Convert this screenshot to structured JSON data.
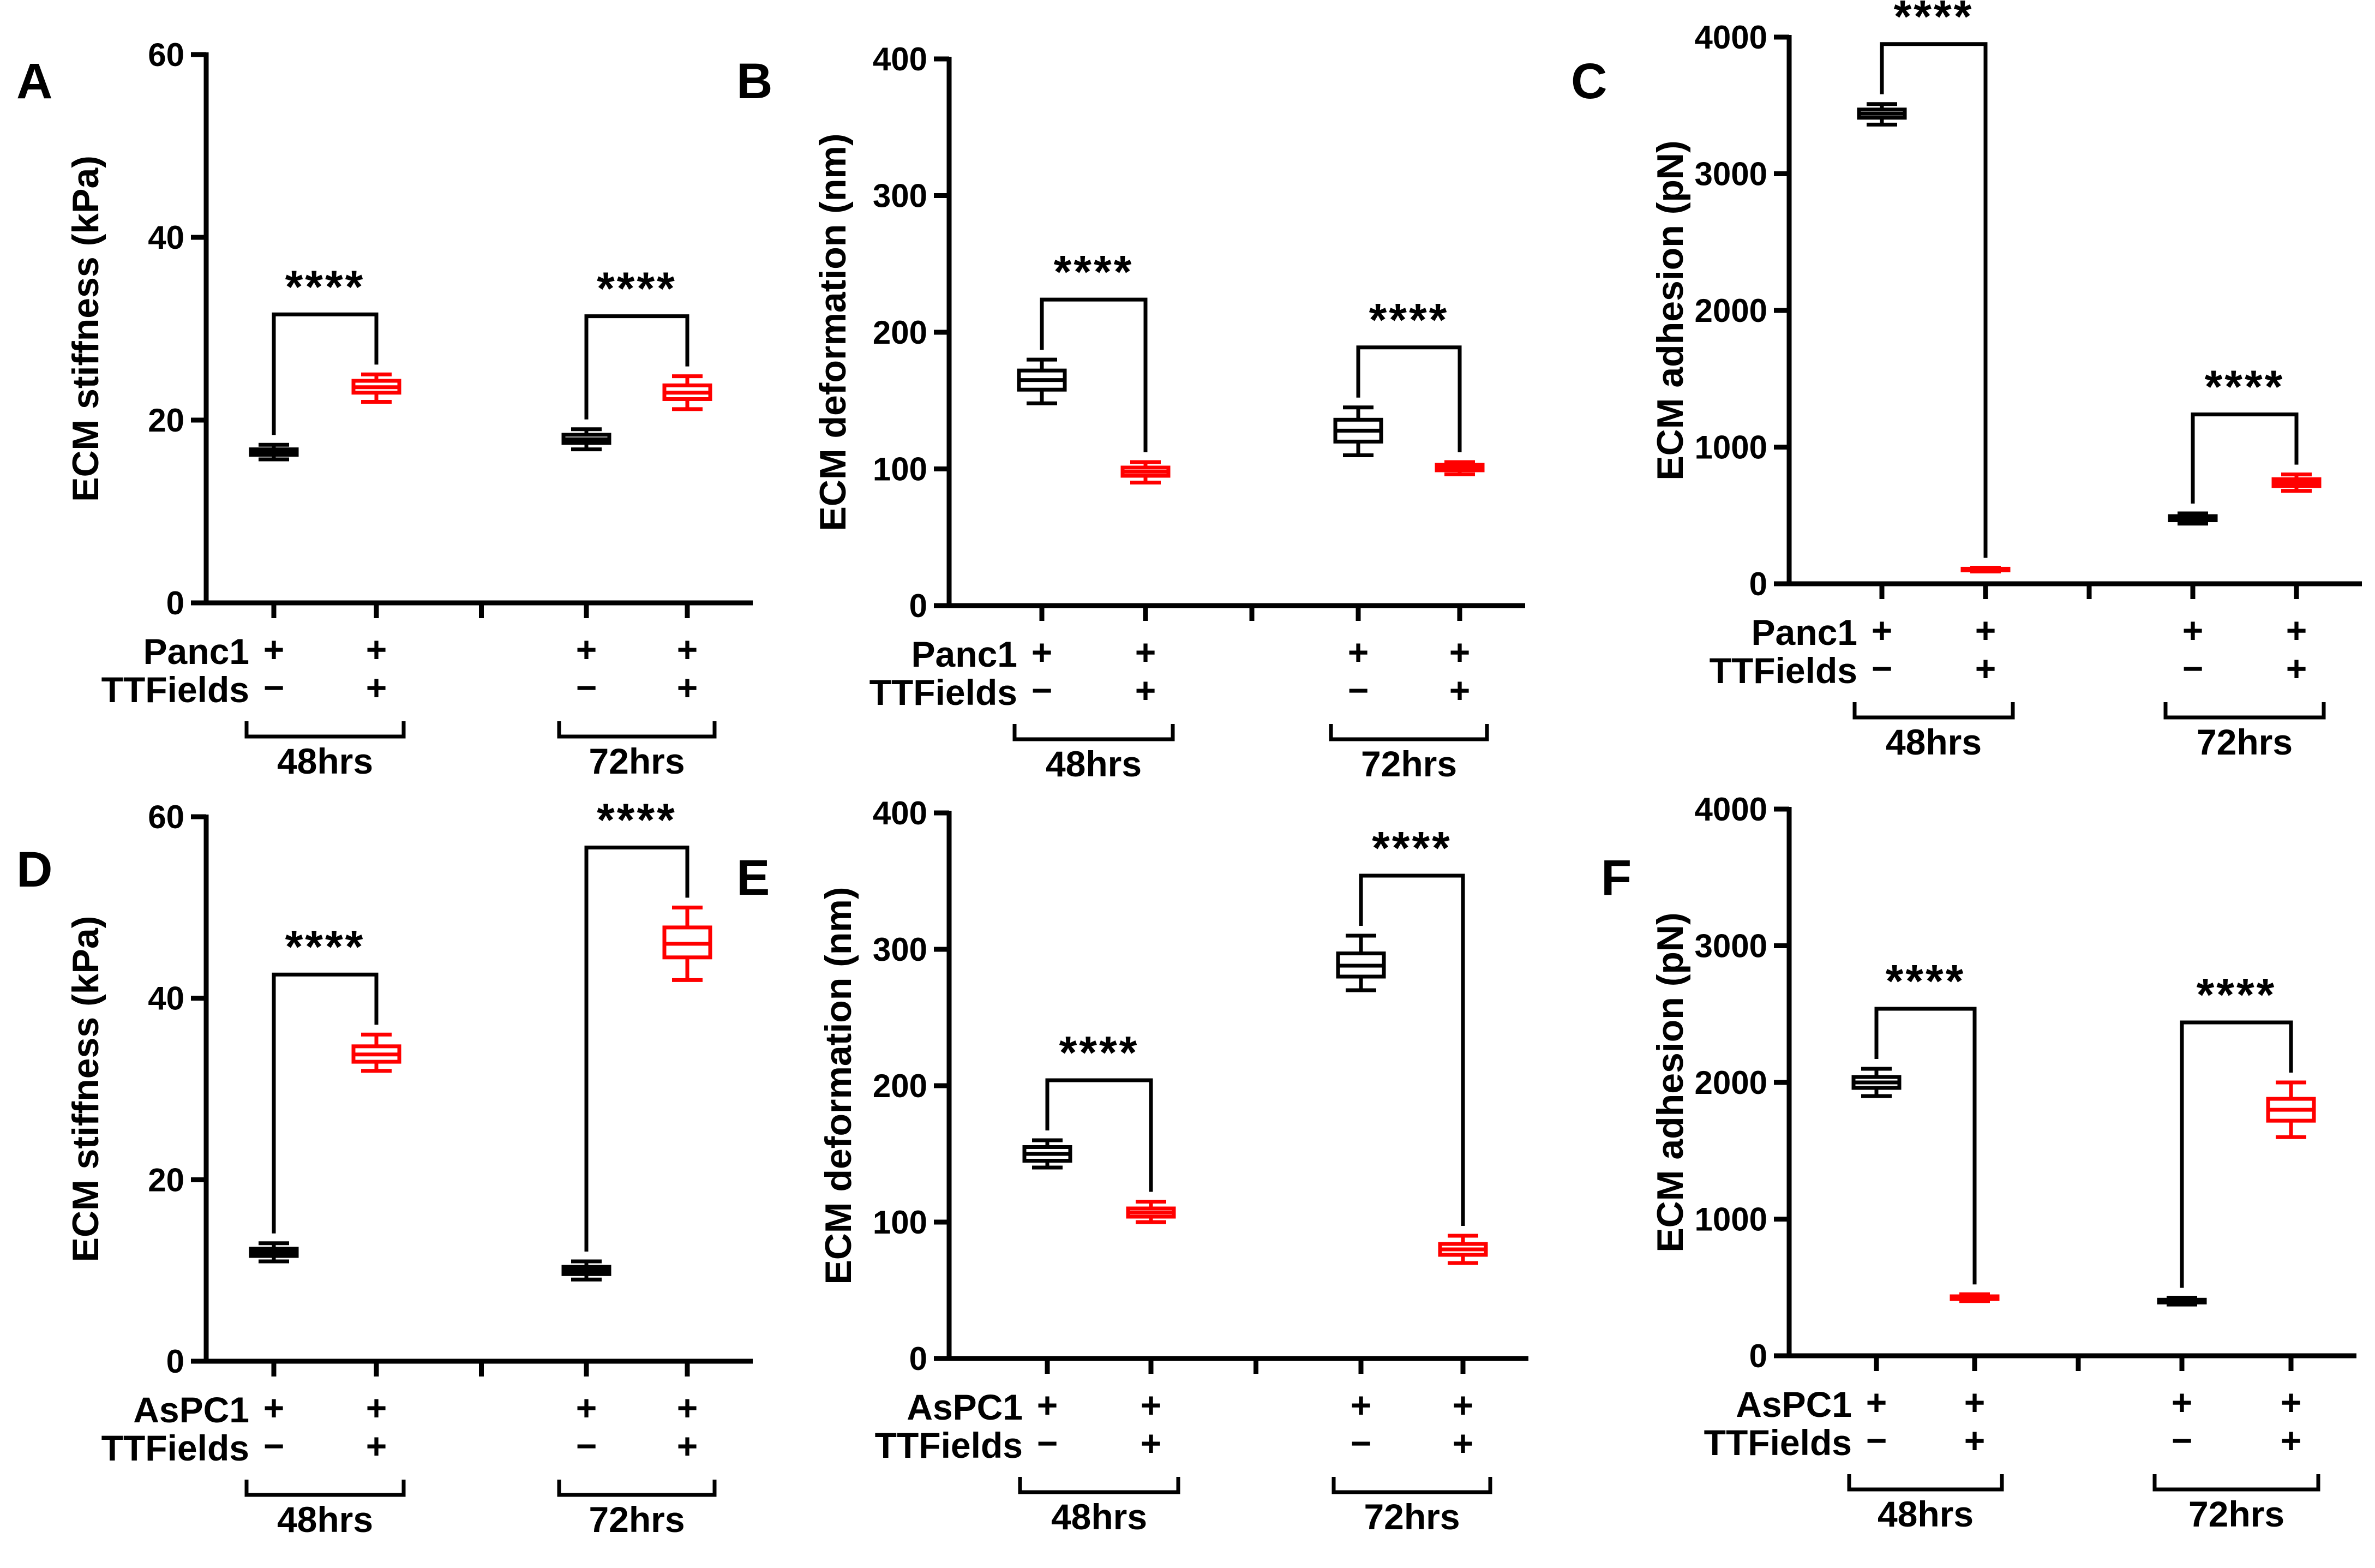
{
  "chart_data": [
    {
      "panel": "A",
      "type": "boxplot",
      "ylabel": "ECM stiffness (kPa)",
      "ylim": [
        0,
        60
      ],
      "yticks": [
        0,
        20,
        40,
        60
      ],
      "cell_line": "Panc1",
      "row_labels": [
        "Panc1",
        "TTFields"
      ],
      "groups": [
        "48hrs",
        "72hrs"
      ],
      "significance": [
        "****",
        "****"
      ],
      "boxes": [
        {
          "group": "48hrs",
          "cell": "+",
          "ttfields": "−",
          "color": "#000000",
          "min": 15.7,
          "q1": 16.2,
          "median": 16.5,
          "q3": 16.8,
          "max": 17.3
        },
        {
          "group": "48hrs",
          "cell": "+",
          "ttfields": "+",
          "color": "#ff0000",
          "min": 22.0,
          "q1": 23.0,
          "median": 23.6,
          "q3": 24.3,
          "max": 25.0
        },
        {
          "group": "72hrs",
          "cell": "+",
          "ttfields": "−",
          "color": "#000000",
          "min": 16.8,
          "q1": 17.5,
          "median": 17.9,
          "q3": 18.4,
          "max": 19.0
        },
        {
          "group": "72hrs",
          "cell": "+",
          "ttfields": "+",
          "color": "#ff0000",
          "min": 21.2,
          "q1": 22.3,
          "median": 23.0,
          "q3": 23.8,
          "max": 24.8
        }
      ]
    },
    {
      "panel": "B",
      "type": "boxplot",
      "ylabel": "ECM deformation (nm)",
      "ylim": [
        0,
        400
      ],
      "yticks": [
        0,
        100,
        200,
        300,
        400
      ],
      "cell_line": "Panc1",
      "row_labels": [
        "Panc1",
        "TTFields"
      ],
      "groups": [
        "48hrs",
        "72hrs"
      ],
      "significance": [
        "****",
        "****"
      ],
      "boxes": [
        {
          "group": "48hrs",
          "cell": "+",
          "ttfields": "−",
          "color": "#000000",
          "min": 148,
          "q1": 158,
          "median": 165,
          "q3": 172,
          "max": 180
        },
        {
          "group": "48hrs",
          "cell": "+",
          "ttfields": "+",
          "color": "#ff0000",
          "min": 90,
          "q1": 95,
          "median": 98,
          "q3": 101,
          "max": 105
        },
        {
          "group": "72hrs",
          "cell": "+",
          "ttfields": "−",
          "color": "#000000",
          "min": 110,
          "q1": 120,
          "median": 128,
          "q3": 136,
          "max": 145
        },
        {
          "group": "72hrs",
          "cell": "+",
          "ttfields": "+",
          "color": "#ff0000",
          "min": 96,
          "q1": 99,
          "median": 101,
          "q3": 103,
          "max": 105
        }
      ]
    },
    {
      "panel": "C",
      "type": "boxplot",
      "ylabel": "ECM adhesion (pN)",
      "ylim": [
        0,
        4000
      ],
      "yticks": [
        0,
        1000,
        2000,
        3000,
        4000
      ],
      "cell_line": "Panc1",
      "row_labels": [
        "Panc1",
        "TTFields"
      ],
      "groups": [
        "48hrs",
        "72hrs"
      ],
      "significance": [
        "****",
        "****"
      ],
      "boxes": [
        {
          "group": "48hrs",
          "cell": "+",
          "ttfields": "−",
          "color": "#000000",
          "min": 3360,
          "q1": 3410,
          "median": 3440,
          "q3": 3470,
          "max": 3510
        },
        {
          "group": "48hrs",
          "cell": "+",
          "ttfields": "+",
          "color": "#ff0000",
          "min": 90,
          "q1": 98,
          "median": 104,
          "q3": 110,
          "max": 118
        },
        {
          "group": "72hrs",
          "cell": "+",
          "ttfields": "−",
          "color": "#000000",
          "min": 440,
          "q1": 465,
          "median": 480,
          "q3": 495,
          "max": 515
        },
        {
          "group": "72hrs",
          "cell": "+",
          "ttfields": "+",
          "color": "#ff0000",
          "min": 680,
          "q1": 715,
          "median": 740,
          "q3": 765,
          "max": 800
        }
      ]
    },
    {
      "panel": "D",
      "type": "boxplot",
      "ylabel": "ECM stiffness (kPa)",
      "ylim": [
        0,
        60
      ],
      "yticks": [
        0,
        20,
        40,
        60
      ],
      "cell_line": "AsPC1",
      "row_labels": [
        "AsPC1",
        "TTFields"
      ],
      "groups": [
        "48hrs",
        "72hrs"
      ],
      "significance": [
        "****",
        "****"
      ],
      "boxes": [
        {
          "group": "48hrs",
          "cell": "+",
          "ttfields": "−",
          "color": "#000000",
          "min": 11.0,
          "q1": 11.6,
          "median": 12.0,
          "q3": 12.4,
          "max": 13.0
        },
        {
          "group": "48hrs",
          "cell": "+",
          "ttfields": "+",
          "color": "#ff0000",
          "min": 32.0,
          "q1": 33.0,
          "median": 33.8,
          "q3": 34.7,
          "max": 36.0
        },
        {
          "group": "72hrs",
          "cell": "+",
          "ttfields": "−",
          "color": "#000000",
          "min": 9.0,
          "q1": 9.6,
          "median": 10.0,
          "q3": 10.4,
          "max": 11.0
        },
        {
          "group": "72hrs",
          "cell": "+",
          "ttfields": "+",
          "color": "#ff0000",
          "min": 42.0,
          "q1": 44.5,
          "median": 46.0,
          "q3": 47.8,
          "max": 50.0
        }
      ]
    },
    {
      "panel": "E",
      "type": "boxplot",
      "ylabel": "ECM deformation (nm)",
      "ylim": [
        0,
        400
      ],
      "yticks": [
        0,
        100,
        200,
        300,
        400
      ],
      "cell_line": "AsPC1",
      "row_labels": [
        "AsPC1",
        "TTFields"
      ],
      "groups": [
        "48hrs",
        "72hrs"
      ],
      "significance": [
        "****",
        "****"
      ],
      "boxes": [
        {
          "group": "48hrs",
          "cell": "+",
          "ttfields": "−",
          "color": "#000000",
          "min": 140,
          "q1": 145,
          "median": 150,
          "q3": 155,
          "max": 160
        },
        {
          "group": "48hrs",
          "cell": "+",
          "ttfields": "+",
          "color": "#ff0000",
          "min": 100,
          "q1": 104,
          "median": 107,
          "q3": 110,
          "max": 115
        },
        {
          "group": "72hrs",
          "cell": "+",
          "ttfields": "−",
          "color": "#000000",
          "min": 270,
          "q1": 280,
          "median": 288,
          "q3": 297,
          "max": 310
        },
        {
          "group": "72hrs",
          "cell": "+",
          "ttfields": "+",
          "color": "#ff0000",
          "min": 70,
          "q1": 76,
          "median": 80,
          "q3": 84,
          "max": 90
        }
      ]
    },
    {
      "panel": "F",
      "type": "boxplot",
      "ylabel": "ECM adhesion (pN)",
      "ylim": [
        0,
        4000
      ],
      "yticks": [
        0,
        1000,
        2000,
        3000,
        4000
      ],
      "cell_line": "AsPC1",
      "row_labels": [
        "AsPC1",
        "TTFields"
      ],
      "groups": [
        "48hrs",
        "72hrs"
      ],
      "significance": [
        "****",
        "****"
      ],
      "boxes": [
        {
          "group": "48hrs",
          "cell": "+",
          "ttfields": "−",
          "color": "#000000",
          "min": 1900,
          "q1": 1960,
          "median": 2000,
          "q3": 2040,
          "max": 2100
        },
        {
          "group": "48hrs",
          "cell": "+",
          "ttfields": "+",
          "color": "#ff0000",
          "min": 400,
          "q1": 415,
          "median": 425,
          "q3": 435,
          "max": 450
        },
        {
          "group": "72hrs",
          "cell": "+",
          "ttfields": "−",
          "color": "#000000",
          "min": 375,
          "q1": 390,
          "median": 400,
          "q3": 410,
          "max": 425
        },
        {
          "group": "72hrs",
          "cell": "+",
          "ttfields": "+",
          "color": "#ff0000",
          "min": 1600,
          "q1": 1720,
          "median": 1800,
          "q3": 1880,
          "max": 2000
        }
      ]
    }
  ]
}
